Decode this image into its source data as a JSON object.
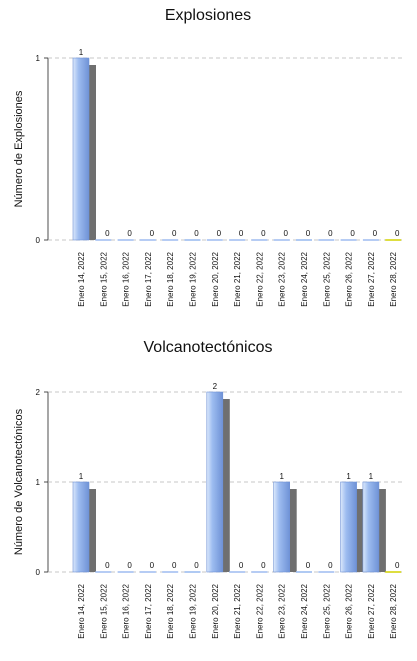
{
  "chart_data": [
    {
      "type": "bar",
      "title": "Explosiones",
      "ylabel": "Número de Explosiones",
      "xlabel": "",
      "categories": [
        "Enero 14, 2022",
        "Enero 15, 2022",
        "Enero 16, 2022",
        "Enero 17, 2022",
        "Enero 18, 2022",
        "Enero 19, 2022",
        "Enero 20, 2022",
        "Enero 21, 2022",
        "Enero 22, 2022",
        "Enero 23, 2022",
        "Enero 24, 2022",
        "Enero 25, 2022",
        "Enero 26, 2022",
        "Enero 27, 2022",
        "Enero 28, 2022"
      ],
      "values": [
        1,
        0,
        0,
        0,
        0,
        0,
        0,
        0,
        0,
        0,
        0,
        0,
        0,
        0,
        0
      ],
      "ylim": [
        0,
        1
      ],
      "yticks": [
        0,
        1
      ],
      "grid": true
    },
    {
      "type": "bar",
      "title": "Volcanotectónicos",
      "ylabel": "Número de Volcanotectónicos",
      "xlabel": "",
      "categories": [
        "Enero 14, 2022",
        "Enero 15, 2022",
        "Enero 16, 2022",
        "Enero 17, 2022",
        "Enero 18, 2022",
        "Enero 19, 2022",
        "Enero 20, 2022",
        "Enero 21, 2022",
        "Enero 22, 2022",
        "Enero 23, 2022",
        "Enero 24, 2022",
        "Enero 25, 2022",
        "Enero 26, 2022",
        "Enero 27, 2022",
        "Enero 28, 2022"
      ],
      "values": [
        1,
        0,
        0,
        0,
        0,
        0,
        2,
        0,
        0,
        1,
        0,
        0,
        1,
        1,
        0
      ],
      "ylim": [
        0,
        2
      ],
      "yticks": [
        0,
        1,
        2
      ],
      "grid": true
    }
  ],
  "colors": {
    "bar_light": "#dbe8fb",
    "bar_mid": "#9dbcf0",
    "bar_dark": "#6f92d6",
    "shadow": "#6f6f6f",
    "last_bar_line": "#d4d400",
    "grid": "#b5b5b5"
  }
}
